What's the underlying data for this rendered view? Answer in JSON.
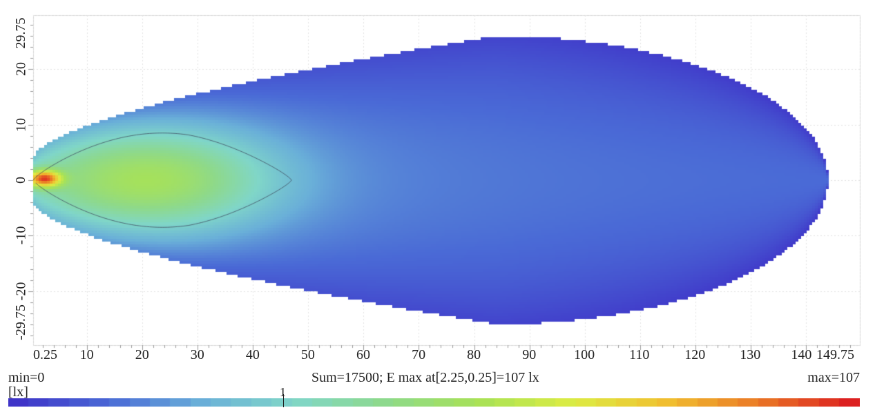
{
  "chart_data": {
    "type": "heatmap",
    "title": "",
    "unit": "[lx]",
    "xlim": [
      0.25,
      149.75
    ],
    "ylim": [
      -29.75,
      29.75
    ],
    "x_ticks": [
      "0.25",
      "10",
      "20",
      "30",
      "40",
      "50",
      "60",
      "70",
      "80",
      "90",
      "100",
      "110",
      "120",
      "130",
      "140",
      "149.75"
    ],
    "x_tick_values": [
      0.25,
      10,
      20,
      30,
      40,
      50,
      60,
      70,
      80,
      90,
      100,
      110,
      120,
      130,
      140,
      149.75
    ],
    "y_ticks": [
      "-29.75",
      "-20",
      "-10",
      "0",
      "10",
      "20",
      "29.75"
    ],
    "y_tick_values": [
      -29.75,
      -20,
      -10,
      0,
      10,
      20,
      29.75
    ],
    "grid": true,
    "min": 0,
    "max": 107,
    "min_label": "min=0",
    "max_label": "max=107",
    "summary": "Sum=17500; E max at[2.25,0.25]=107 lx",
    "e_max_position": [
      2.25,
      0.25
    ],
    "e_max_value": 107,
    "isoline_value": 1,
    "isoline_label": "1",
    "isoline_extent_x": [
      0.25,
      47
    ],
    "isoline_half_width_max": 8.5,
    "footprint": {
      "x_start": 0.25,
      "x_end": 144,
      "max_half_width": 26,
      "x_at_max_width": 84
    },
    "color_scale": [
      "#3f34c8",
      "#4a6ad6",
      "#6ab0d8",
      "#80d6c8",
      "#8ed98a",
      "#a8e256",
      "#dcec44",
      "#f0c030",
      "#ea7a26",
      "#dc2020"
    ]
  }
}
